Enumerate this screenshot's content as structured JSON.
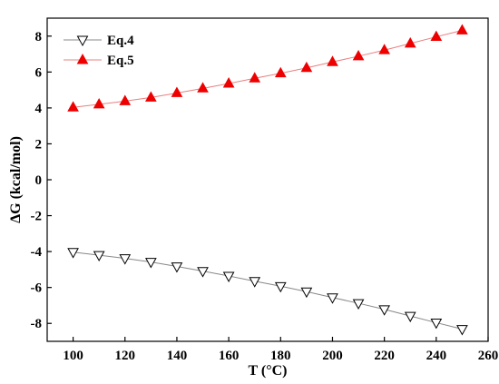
{
  "chart_data": {
    "type": "line",
    "xlabel": "T (°C)",
    "ylabel": "ΔG (kcal/mol)",
    "xlim": [
      90,
      260
    ],
    "ylim": [
      -9,
      9
    ],
    "x_ticks": [
      100,
      120,
      140,
      160,
      180,
      200,
      220,
      240,
      260
    ],
    "y_ticks": [
      8,
      6,
      4,
      2,
      0,
      -2,
      -4,
      -6,
      -8
    ],
    "grid": false,
    "legend_position": "top-left",
    "x": [
      100,
      110,
      120,
      130,
      140,
      150,
      160,
      170,
      180,
      190,
      200,
      210,
      220,
      230,
      240,
      250
    ],
    "series": [
      {
        "name": "Eq.4",
        "marker": "open-down-triangle",
        "color": "#000000",
        "line_color": "#888888",
        "values": [
          -4.03,
          -4.2,
          -4.38,
          -4.58,
          -4.83,
          -5.09,
          -5.36,
          -5.65,
          -5.93,
          -6.23,
          -6.56,
          -6.88,
          -7.22,
          -7.59,
          -7.96,
          -8.32
        ]
      },
      {
        "name": "Eq.5",
        "marker": "filled-up-triangle",
        "color": "#ee0000",
        "line_color": "#e88080",
        "values": [
          4.03,
          4.2,
          4.38,
          4.58,
          4.83,
          5.09,
          5.36,
          5.65,
          5.93,
          6.23,
          6.56,
          6.88,
          7.22,
          7.59,
          7.96,
          8.32
        ]
      }
    ]
  }
}
